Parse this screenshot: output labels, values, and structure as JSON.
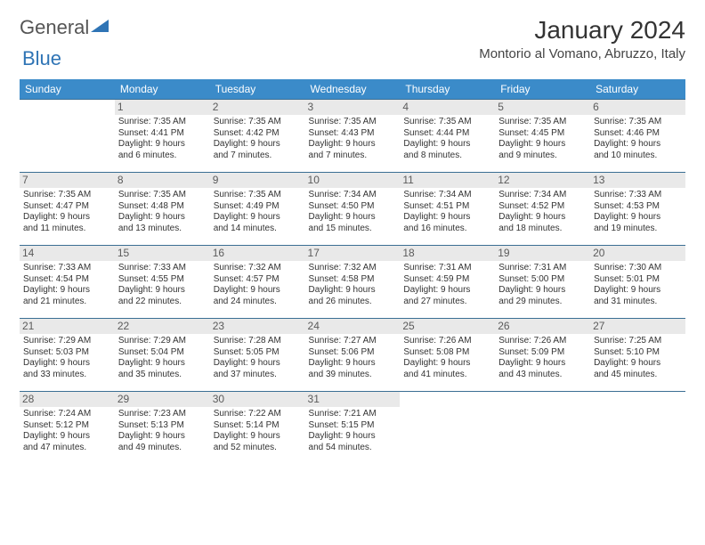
{
  "brand": {
    "word1": "General",
    "word2": "Blue"
  },
  "title": "January 2024",
  "location": "Montorio al Vomano, Abruzzo, Italy",
  "colors": {
    "header_bg": "#3b8bc9",
    "header_fg": "#ffffff",
    "row_border": "#3b6f94",
    "daynum_bg": "#e9e9e9",
    "logo_blue": "#2f74b5"
  },
  "weekdays": [
    "Sunday",
    "Monday",
    "Tuesday",
    "Wednesday",
    "Thursday",
    "Friday",
    "Saturday"
  ],
  "weeks": [
    [
      null,
      {
        "n": "1",
        "sr": "Sunrise: 7:35 AM",
        "ss": "Sunset: 4:41 PM",
        "d1": "Daylight: 9 hours",
        "d2": "and 6 minutes."
      },
      {
        "n": "2",
        "sr": "Sunrise: 7:35 AM",
        "ss": "Sunset: 4:42 PM",
        "d1": "Daylight: 9 hours",
        "d2": "and 7 minutes."
      },
      {
        "n": "3",
        "sr": "Sunrise: 7:35 AM",
        "ss": "Sunset: 4:43 PM",
        "d1": "Daylight: 9 hours",
        "d2": "and 7 minutes."
      },
      {
        "n": "4",
        "sr": "Sunrise: 7:35 AM",
        "ss": "Sunset: 4:44 PM",
        "d1": "Daylight: 9 hours",
        "d2": "and 8 minutes."
      },
      {
        "n": "5",
        "sr": "Sunrise: 7:35 AM",
        "ss": "Sunset: 4:45 PM",
        "d1": "Daylight: 9 hours",
        "d2": "and 9 minutes."
      },
      {
        "n": "6",
        "sr": "Sunrise: 7:35 AM",
        "ss": "Sunset: 4:46 PM",
        "d1": "Daylight: 9 hours",
        "d2": "and 10 minutes."
      }
    ],
    [
      {
        "n": "7",
        "sr": "Sunrise: 7:35 AM",
        "ss": "Sunset: 4:47 PM",
        "d1": "Daylight: 9 hours",
        "d2": "and 11 minutes."
      },
      {
        "n": "8",
        "sr": "Sunrise: 7:35 AM",
        "ss": "Sunset: 4:48 PM",
        "d1": "Daylight: 9 hours",
        "d2": "and 13 minutes."
      },
      {
        "n": "9",
        "sr": "Sunrise: 7:35 AM",
        "ss": "Sunset: 4:49 PM",
        "d1": "Daylight: 9 hours",
        "d2": "and 14 minutes."
      },
      {
        "n": "10",
        "sr": "Sunrise: 7:34 AM",
        "ss": "Sunset: 4:50 PM",
        "d1": "Daylight: 9 hours",
        "d2": "and 15 minutes."
      },
      {
        "n": "11",
        "sr": "Sunrise: 7:34 AM",
        "ss": "Sunset: 4:51 PM",
        "d1": "Daylight: 9 hours",
        "d2": "and 16 minutes."
      },
      {
        "n": "12",
        "sr": "Sunrise: 7:34 AM",
        "ss": "Sunset: 4:52 PM",
        "d1": "Daylight: 9 hours",
        "d2": "and 18 minutes."
      },
      {
        "n": "13",
        "sr": "Sunrise: 7:33 AM",
        "ss": "Sunset: 4:53 PM",
        "d1": "Daylight: 9 hours",
        "d2": "and 19 minutes."
      }
    ],
    [
      {
        "n": "14",
        "sr": "Sunrise: 7:33 AM",
        "ss": "Sunset: 4:54 PM",
        "d1": "Daylight: 9 hours",
        "d2": "and 21 minutes."
      },
      {
        "n": "15",
        "sr": "Sunrise: 7:33 AM",
        "ss": "Sunset: 4:55 PM",
        "d1": "Daylight: 9 hours",
        "d2": "and 22 minutes."
      },
      {
        "n": "16",
        "sr": "Sunrise: 7:32 AM",
        "ss": "Sunset: 4:57 PM",
        "d1": "Daylight: 9 hours",
        "d2": "and 24 minutes."
      },
      {
        "n": "17",
        "sr": "Sunrise: 7:32 AM",
        "ss": "Sunset: 4:58 PM",
        "d1": "Daylight: 9 hours",
        "d2": "and 26 minutes."
      },
      {
        "n": "18",
        "sr": "Sunrise: 7:31 AM",
        "ss": "Sunset: 4:59 PM",
        "d1": "Daylight: 9 hours",
        "d2": "and 27 minutes."
      },
      {
        "n": "19",
        "sr": "Sunrise: 7:31 AM",
        "ss": "Sunset: 5:00 PM",
        "d1": "Daylight: 9 hours",
        "d2": "and 29 minutes."
      },
      {
        "n": "20",
        "sr": "Sunrise: 7:30 AM",
        "ss": "Sunset: 5:01 PM",
        "d1": "Daylight: 9 hours",
        "d2": "and 31 minutes."
      }
    ],
    [
      {
        "n": "21",
        "sr": "Sunrise: 7:29 AM",
        "ss": "Sunset: 5:03 PM",
        "d1": "Daylight: 9 hours",
        "d2": "and 33 minutes."
      },
      {
        "n": "22",
        "sr": "Sunrise: 7:29 AM",
        "ss": "Sunset: 5:04 PM",
        "d1": "Daylight: 9 hours",
        "d2": "and 35 minutes."
      },
      {
        "n": "23",
        "sr": "Sunrise: 7:28 AM",
        "ss": "Sunset: 5:05 PM",
        "d1": "Daylight: 9 hours",
        "d2": "and 37 minutes."
      },
      {
        "n": "24",
        "sr": "Sunrise: 7:27 AM",
        "ss": "Sunset: 5:06 PM",
        "d1": "Daylight: 9 hours",
        "d2": "and 39 minutes."
      },
      {
        "n": "25",
        "sr": "Sunrise: 7:26 AM",
        "ss": "Sunset: 5:08 PM",
        "d1": "Daylight: 9 hours",
        "d2": "and 41 minutes."
      },
      {
        "n": "26",
        "sr": "Sunrise: 7:26 AM",
        "ss": "Sunset: 5:09 PM",
        "d1": "Daylight: 9 hours",
        "d2": "and 43 minutes."
      },
      {
        "n": "27",
        "sr": "Sunrise: 7:25 AM",
        "ss": "Sunset: 5:10 PM",
        "d1": "Daylight: 9 hours",
        "d2": "and 45 minutes."
      }
    ],
    [
      {
        "n": "28",
        "sr": "Sunrise: 7:24 AM",
        "ss": "Sunset: 5:12 PM",
        "d1": "Daylight: 9 hours",
        "d2": "and 47 minutes."
      },
      {
        "n": "29",
        "sr": "Sunrise: 7:23 AM",
        "ss": "Sunset: 5:13 PM",
        "d1": "Daylight: 9 hours",
        "d2": "and 49 minutes."
      },
      {
        "n": "30",
        "sr": "Sunrise: 7:22 AM",
        "ss": "Sunset: 5:14 PM",
        "d1": "Daylight: 9 hours",
        "d2": "and 52 minutes."
      },
      {
        "n": "31",
        "sr": "Sunrise: 7:21 AM",
        "ss": "Sunset: 5:15 PM",
        "d1": "Daylight: 9 hours",
        "d2": "and 54 minutes."
      },
      null,
      null,
      null
    ]
  ]
}
